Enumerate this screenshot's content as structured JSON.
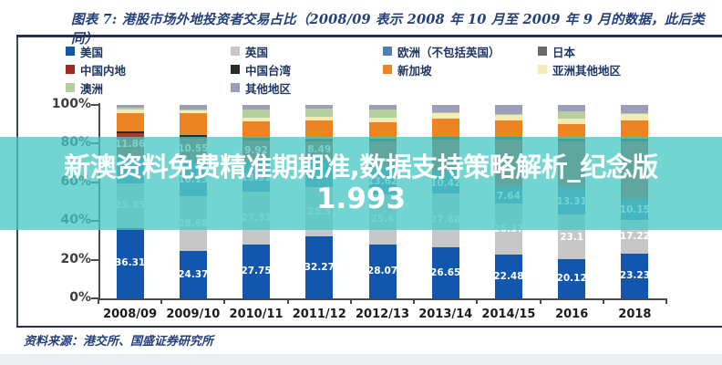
{
  "figure": {
    "title": "图表 7: 港股市场外地投资者交易占比（2008/09 表示 2008 年 10 月至 2009 年 9 月的数据，此后类同）",
    "source": "资料来源：港交所、国盛证券研究所"
  },
  "overlay": {
    "line1": "新澳资料免费精准期期准,数据支持策略解析_纪念版",
    "line2": "1.993",
    "band_color": "#46c8c4",
    "text_color": "#ffffff"
  },
  "legend": [
    {
      "label": "美国",
      "color": "#1257ad"
    },
    {
      "label": "英国",
      "color": "#c7c7c7"
    },
    {
      "label": "欧洲（不包括英国）",
      "color": "#4f7fb5"
    },
    {
      "label": "日本",
      "color": "#6b6b6b"
    },
    {
      "label": "中国内地",
      "color": "#9e2b22"
    },
    {
      "label": "中国台湾",
      "color": "#2b2b2b"
    },
    {
      "label": "新加坡",
      "color": "#ec8423"
    },
    {
      "label": "亚洲其他地区",
      "color": "#f4ecb4"
    },
    {
      "label": "澳洲",
      "color": "#b7cf9e"
    },
    {
      "label": "其他地区",
      "color": "#9d9fba"
    }
  ],
  "chart_data": {
    "type": "bar",
    "stacked": true,
    "unit": "%",
    "ylim": [
      0,
      100
    ],
    "y_ticks": [
      "0%",
      "20%",
      "40%",
      "60%",
      "80%",
      "100%"
    ],
    "grid": false,
    "legend_position": "top",
    "categories": [
      "2008/09",
      "2009/10",
      "2010/11",
      "2011/12",
      "2012/13",
      "2013/14",
      "2014/15",
      "2016",
      "2018"
    ],
    "series": [
      {
        "name": "美国",
        "color": "#1257ad",
        "values": [
          36.31,
          24.37,
          27.75,
          32.27,
          28.07,
          26.65,
          22.48,
          20.12,
          23.23
        ],
        "labels": [
          "36.31",
          "24.37",
          "27.75",
          "32.27",
          "28.07",
          "26.65",
          "22.48",
          "20.12",
          "23.23"
        ]
      },
      {
        "name": "英国",
        "color": "#c7c7c7",
        "values": [
          23.35,
          28.68,
          27.32,
          25.3,
          25.6,
          27.68,
          26.37,
          23.1,
          17.22
        ],
        "labels": [
          "23.35",
          "28.68",
          "27.32",
          "25.3",
          "25.6",
          "27.68",
          "26.37",
          "23.1",
          "17.22"
        ]
      },
      {
        "name": "欧洲（不包括英国）",
        "color": "#4f7fb5",
        "values": [
          12.5,
          16.13,
          13.91,
          13.2,
          13.62,
          10.42,
          7.64,
          13.31,
          10.15
        ],
        "labels": [
          null,
          "16.13",
          "13.91",
          null,
          "13.62",
          "10.42",
          "7.64",
          "13.31",
          "10.15"
        ]
      },
      {
        "name": "日本",
        "color": "#6b6b6b",
        "values": [
          1.5,
          3.0,
          2.5,
          2.0,
          2.0,
          2.0,
          2.0,
          2.0,
          2.0
        ],
        "labels": [
          null,
          null,
          null,
          null,
          null,
          null,
          null,
          null,
          null
        ]
      },
      {
        "name": "中国内地",
        "color": "#ae3a2a",
        "values": [
          11.86,
          10.55,
          9.92,
          8.49,
          11.7,
          15.2,
          23.4,
          22.7,
          28.4
        ],
        "labels": [
          "11.86",
          "10.55",
          "9.92",
          "8.49",
          null,
          null,
          null,
          null,
          null
        ]
      },
      {
        "name": "中国台湾",
        "color": "#2b2b2b",
        "values": [
          1.0,
          1.5,
          1.5,
          1.5,
          1.5,
          1.55,
          1.5,
          1.5,
          1.5
        ],
        "labels": [
          null,
          null,
          null,
          null,
          null,
          null,
          null,
          null,
          null
        ]
      },
      {
        "name": "新加坡",
        "color": "#ec8423",
        "values": [
          9.3,
          11.5,
          8.6,
          9.4,
          8.5,
          9.3,
          8.6,
          7.4,
          9.7
        ],
        "labels": [
          null,
          null,
          null,
          null,
          null,
          null,
          null,
          null,
          null
        ]
      },
      {
        "name": "亚洲其他地区",
        "color": "#f4ecb4",
        "values": [
          2.0,
          1.4,
          1.9,
          1.9,
          2.4,
          2.8,
          2.8,
          3.0,
          3.1
        ],
        "labels": [
          null,
          null,
          null,
          null,
          null,
          null,
          null,
          null,
          null
        ]
      },
      {
        "name": "澳洲",
        "color": "#b7cf9e",
        "values": [
          0.7,
          0.6,
          4.1,
          4.0,
          4.2,
          0.5,
          0.5,
          3.8,
          0.5
        ],
        "labels": [
          null,
          null,
          null,
          null,
          null,
          null,
          null,
          null,
          null
        ]
      },
      {
        "name": "其他地区",
        "color": "#9d9fba",
        "values": [
          1.48,
          2.27,
          2.5,
          1.94,
          2.41,
          3.9,
          4.7,
          3.07,
          4.2
        ],
        "labels": [
          null,
          null,
          null,
          null,
          null,
          null,
          null,
          null,
          null
        ]
      }
    ]
  }
}
